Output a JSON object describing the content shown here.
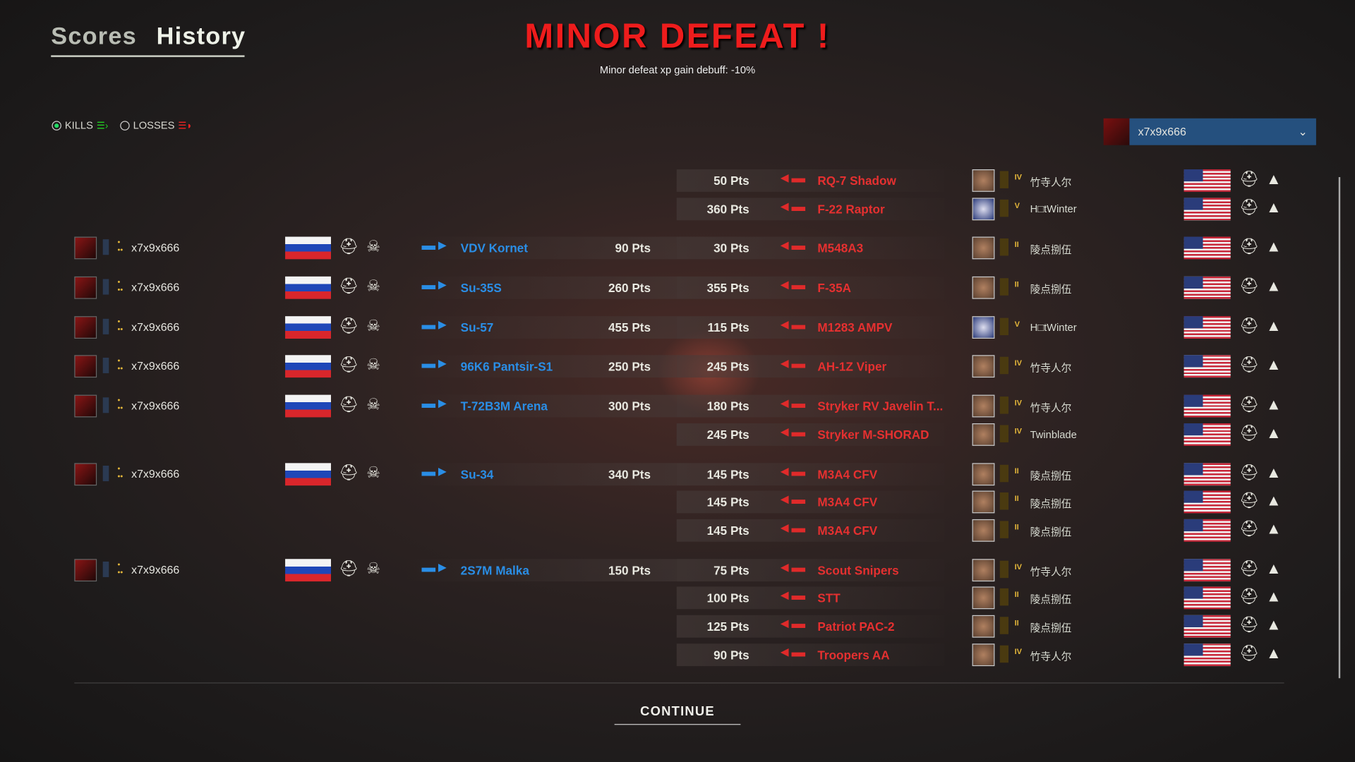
{
  "tabs": [
    {
      "label": "Scores"
    },
    {
      "label": "History",
      "active": true
    }
  ],
  "header": {
    "title": "MINOR DEFEAT !",
    "subtitle": "Minor defeat xp gain debuff: -10%"
  },
  "filters": {
    "kills": "KILLS",
    "losses": "LOSSES",
    "selected": "kills"
  },
  "player_select": {
    "value": "x7x9x666"
  },
  "colors": {
    "title": "#ee1c1c",
    "own_vehicle": "#2a8ee6",
    "enemy_vehicle": "#e53030",
    "dropdown": "#25507e"
  },
  "rows": [
    {
      "right": {
        "pts": "50 Pts",
        "vehicle": "RQ-7 Shadow",
        "player": "竹寺人尔",
        "rank": "IV"
      }
    },
    {
      "right": {
        "pts": "360 Pts",
        "vehicle": "F-22 Raptor",
        "player": "H□tWinter",
        "rank": "V"
      }
    },
    {
      "left": {
        "player": "x7x9x666",
        "vehicle": "VDV Kornet",
        "pts": "90 Pts"
      },
      "right": {
        "pts": "30 Pts",
        "vehicle": "M548A3",
        "player": "陵点捌伍",
        "rank": "II"
      }
    },
    {
      "left": {
        "player": "x7x9x666",
        "vehicle": "Su-35S",
        "pts": "260 Pts"
      },
      "right": {
        "pts": "355 Pts",
        "vehicle": "F-35A",
        "player": "陵点捌伍",
        "rank": "II"
      }
    },
    {
      "left": {
        "player": "x7x9x666",
        "vehicle": "Su-57",
        "pts": "455 Pts"
      },
      "right": {
        "pts": "115 Pts",
        "vehicle": "M1283 AMPV",
        "player": "H□tWinter",
        "rank": "V"
      }
    },
    {
      "left": {
        "player": "x7x9x666",
        "vehicle": "96K6 Pantsir-S1",
        "pts": "250 Pts"
      },
      "right": {
        "pts": "245 Pts",
        "vehicle": "AH-1Z Viper",
        "player": "竹寺人尔",
        "rank": "IV"
      }
    },
    {
      "left": {
        "player": "x7x9x666",
        "vehicle": "T-72B3M Arena",
        "pts": "300 Pts"
      },
      "right": {
        "pts": "180 Pts",
        "vehicle": "Stryker RV Javelin T...",
        "player": "竹寺人尔",
        "rank": "IV"
      }
    },
    {
      "right": {
        "pts": "245 Pts",
        "vehicle": "Stryker M-SHORAD",
        "player": "Twinblade",
        "rank": "IV"
      }
    },
    {
      "left": {
        "player": "x7x9x666",
        "vehicle": "Su-34",
        "pts": "340 Pts"
      },
      "right": {
        "pts": "145 Pts",
        "vehicle": "M3A4 CFV",
        "player": "陵点捌伍",
        "rank": "II"
      }
    },
    {
      "right": {
        "pts": "145 Pts",
        "vehicle": "M3A4 CFV",
        "player": "陵点捌伍",
        "rank": "II"
      }
    },
    {
      "right": {
        "pts": "145 Pts",
        "vehicle": "M3A4 CFV",
        "player": "陵点捌伍",
        "rank": "II"
      }
    },
    {
      "left": {
        "player": "x7x9x666",
        "vehicle": "2S7M Malka",
        "pts": "150 Pts"
      },
      "right": {
        "pts": "75 Pts",
        "vehicle": "Scout Snipers",
        "player": "竹寺人尔",
        "rank": "IV"
      }
    },
    {
      "right": {
        "pts": "100 Pts",
        "vehicle": "STT",
        "player": "陵点捌伍",
        "rank": "II"
      }
    },
    {
      "right": {
        "pts": "125 Pts",
        "vehicle": "Patriot PAC-2",
        "player": "陵点捌伍",
        "rank": "II"
      }
    },
    {
      "right": {
        "pts": "90 Pts",
        "vehicle": "Troopers AA",
        "player": "竹寺人尔",
        "rank": "IV"
      }
    }
  ],
  "continue_label": "CONTINUE"
}
